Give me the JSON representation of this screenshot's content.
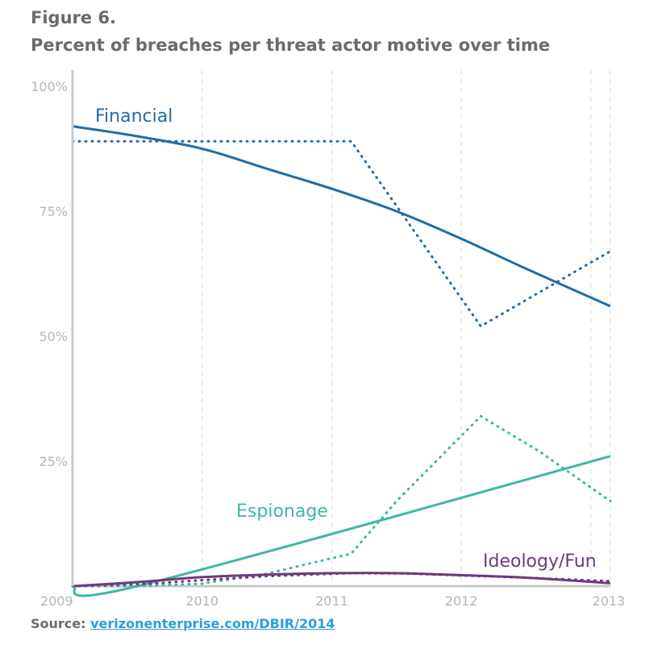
{
  "figure": {
    "label": "Figure 6.",
    "title": "Percent of breaches per threat actor motive over time"
  },
  "source": {
    "prefix": "Source:",
    "link_text": "verizonenterprise.com/DBIR/2014"
  },
  "chart_data": {
    "type": "line",
    "x_ticks": [
      "2009",
      "2010",
      "2011",
      "2012",
      "2013"
    ],
    "y_ticks": [
      "25%",
      "50%",
      "75%",
      "100%"
    ],
    "xlim": [
      2009,
      2013.15
    ],
    "ylim": [
      0,
      100
    ],
    "grid": "vertical dashed",
    "series": [
      {
        "name": "Financial",
        "color": "#1f6fa3",
        "observed": [
          [
            2009,
            89
          ],
          [
            2011.15,
            89
          ],
          [
            2012.15,
            52
          ],
          [
            2013.15,
            67
          ]
        ],
        "trend": [
          [
            2009,
            92
          ],
          [
            2009.5,
            90
          ],
          [
            2010,
            87.5
          ],
          [
            2010.5,
            83.5
          ],
          [
            2011,
            79.5
          ],
          [
            2011.5,
            75
          ],
          [
            2012,
            69.5
          ],
          [
            2012.5,
            63.5
          ],
          [
            2013.15,
            56
          ]
        ]
      },
      {
        "name": "Espionage",
        "color": "#3db8a4",
        "observed": [
          [
            2009,
            0
          ],
          [
            2009.5,
            0
          ],
          [
            2010,
            0.5
          ],
          [
            2010.5,
            2.5
          ],
          [
            2011.15,
            6.5
          ],
          [
            2011.5,
            17
          ],
          [
            2012.15,
            34
          ],
          [
            2012.6,
            27
          ],
          [
            2013.15,
            17
          ]
        ],
        "trend": [
          [
            2009,
            0
          ],
          [
            2009.5,
            0
          ],
          [
            2013.15,
            26
          ]
        ]
      },
      {
        "name": "Ideology/Fun",
        "color": "#6d3a7e",
        "observed": [
          [
            2009,
            0
          ],
          [
            2009.6,
            0.5
          ],
          [
            2010,
            1.2
          ],
          [
            2010.5,
            2
          ],
          [
            2011.15,
            2.6
          ],
          [
            2011.6,
            2.5
          ],
          [
            2012.15,
            2
          ],
          [
            2012.6,
            1.6
          ],
          [
            2013.15,
            1
          ]
        ],
        "trend": [
          [
            2009,
            0
          ],
          [
            2009.5,
            0.8
          ],
          [
            2010,
            1.8
          ],
          [
            2010.5,
            2.3
          ],
          [
            2011,
            2.6
          ],
          [
            2011.5,
            2.6
          ],
          [
            2012,
            2.2
          ],
          [
            2012.5,
            1.7
          ],
          [
            2013.15,
            0.6
          ]
        ]
      }
    ]
  }
}
